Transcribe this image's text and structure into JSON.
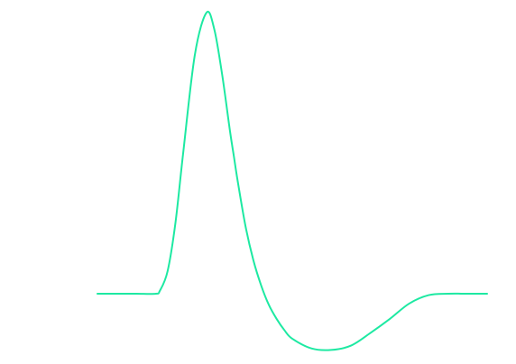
{
  "chart_data": {
    "type": "line",
    "title": "",
    "xlabel": "",
    "ylabel": "",
    "grid": false,
    "legend": "none",
    "axes_visible": false,
    "xlim": [
      0,
      10
    ],
    "ylim": [
      -0.2,
      1.0
    ],
    "series": [
      {
        "color": "#1de9a2",
        "x": [
          0,
          0.5,
          1.0,
          1.5,
          1.6,
          1.8,
          2.0,
          2.2,
          2.5,
          2.8,
          3.0,
          3.2,
          3.4,
          3.5,
          3.6,
          3.8,
          4.0,
          4.2,
          4.4,
          4.6,
          4.8,
          5.0,
          5.5,
          6.0,
          6.5,
          7.0,
          7.5,
          8.0,
          8.5,
          9.0,
          9.5,
          10.0
        ],
        "y": [
          0,
          0,
          0,
          0,
          0.01,
          0.08,
          0.25,
          0.5,
          0.85,
          1.0,
          0.94,
          0.78,
          0.58,
          0.49,
          0.4,
          0.24,
          0.12,
          0.03,
          -0.04,
          -0.09,
          -0.13,
          -0.16,
          -0.195,
          -0.2,
          -0.185,
          -0.14,
          -0.09,
          -0.035,
          -0.005,
          0,
          0,
          0
        ]
      }
    ]
  }
}
